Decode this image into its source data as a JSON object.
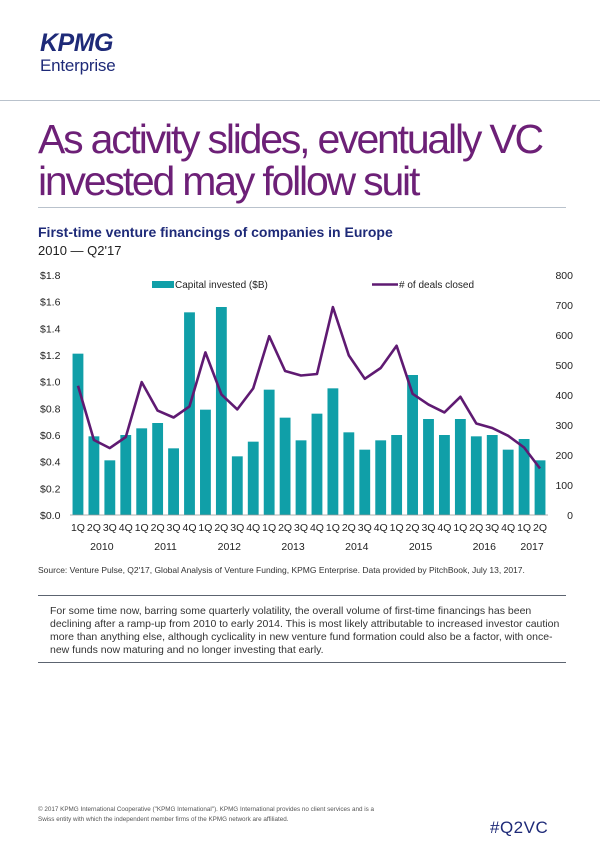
{
  "logo": {
    "brand": "KPMG",
    "sub": "Enterprise"
  },
  "headline": "As activity slides, eventually VC invested may follow suit",
  "colors": {
    "brand_blue": "#1e2a78",
    "headline_purple": "#6d2077",
    "bar": "#109fa8",
    "line": "#5f1a72"
  },
  "chart_title": "First-time venture financings of companies in Europe",
  "chart_subtitle": "2010 — Q2'17",
  "chart_data": {
    "type": "bar+line",
    "categories": [
      "1Q",
      "2Q",
      "3Q",
      "4Q",
      "1Q",
      "2Q",
      "3Q",
      "4Q",
      "1Q",
      "2Q",
      "3Q",
      "4Q",
      "1Q",
      "2Q",
      "3Q",
      "4Q",
      "1Q",
      "2Q",
      "3Q",
      "4Q",
      "1Q",
      "2Q",
      "3Q",
      "4Q",
      "1Q",
      "2Q",
      "3Q",
      "4Q",
      "1Q",
      "2Q"
    ],
    "year_labels": [
      "2010",
      "2011",
      "2012",
      "2013",
      "2014",
      "2015",
      "2016",
      "2017"
    ],
    "series": [
      {
        "name": "Capital invested ($B)",
        "type": "bar",
        "axis": "left",
        "values": [
          1.21,
          0.59,
          0.41,
          0.6,
          0.65,
          0.69,
          0.5,
          1.52,
          0.79,
          1.56,
          0.44,
          0.55,
          0.94,
          0.73,
          0.56,
          0.76,
          0.95,
          0.62,
          0.49,
          0.56,
          0.6,
          1.05,
          0.72,
          0.6,
          0.72,
          0.59,
          0.6,
          0.49,
          0.57,
          0.41
        ]
      },
      {
        "name": "# of deals closed",
        "type": "line",
        "axis": "right",
        "values": [
          431,
          250,
          223,
          260,
          443,
          348,
          325,
          362,
          542,
          402,
          352,
          422,
          596,
          480,
          465,
          470,
          693,
          532,
          454,
          490,
          564,
          404,
          368,
          342,
          394,
          305,
          290,
          264,
          225,
          155
        ]
      }
    ],
    "left_axis": {
      "ticks": [
        "$0.0",
        "$0.2",
        "$0.4",
        "$0.6",
        "$0.8",
        "$1.0",
        "$1.2",
        "$1.4",
        "$1.6",
        "$1.8"
      ],
      "min": 0,
      "max": 1.8
    },
    "right_axis": {
      "ticks": [
        "0",
        "100",
        "200",
        "300",
        "400",
        "500",
        "600",
        "700",
        "800"
      ],
      "min": 0,
      "max": 800
    }
  },
  "source": "Source: Venture Pulse, Q2'17, Global Analysis of Venture Funding, KPMG Enterprise. Data provided by PitchBook, July 13, 2017.",
  "body": "For some time now, barring some quarterly volatility, the overall volume of first-time financings has been declining after a ramp-up from 2010 to early 2014. This is most likely attributable to increased investor caution more than anything else, although cyclicality in new venture fund formation could also be a factor, with once-new funds now maturing and no longer investing that early.",
  "footer": "© 2017 KPMG International Cooperative (\"KPMG International\"). KPMG International provides no client services and is a Swiss entity with which the independent member firms of the KPMG network are affiliated.",
  "hashtag": "#Q2VC"
}
